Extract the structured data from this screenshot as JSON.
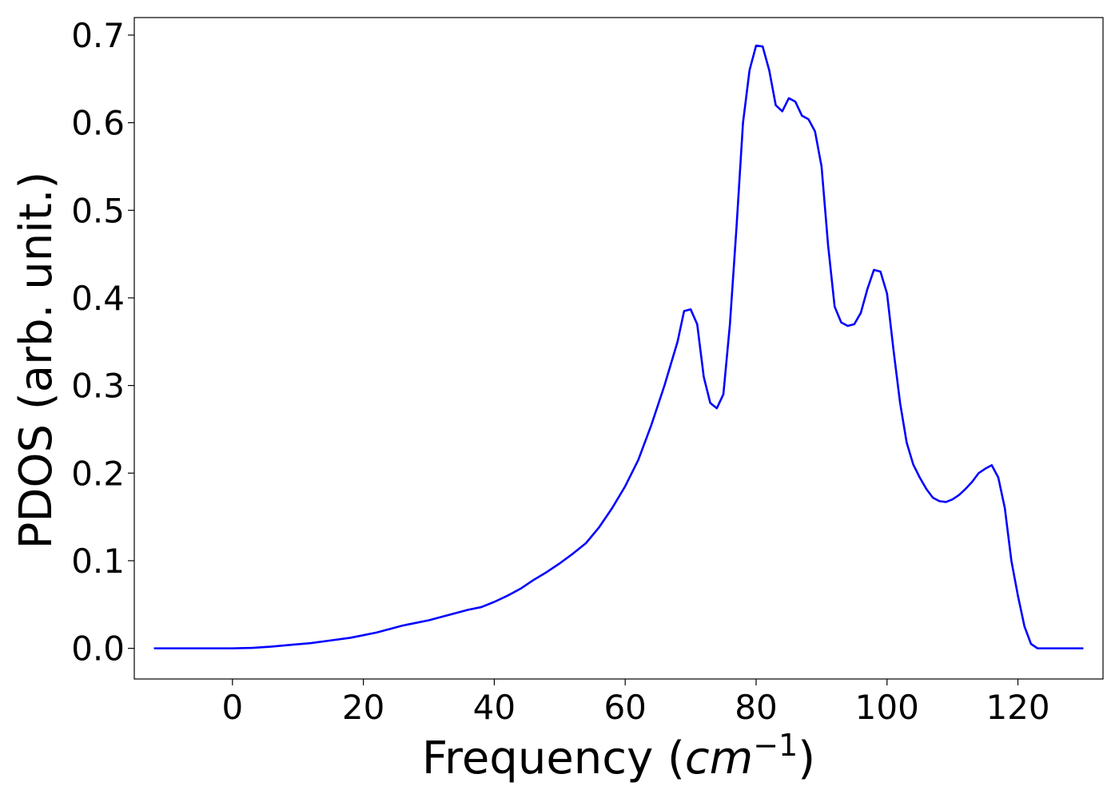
{
  "chart_data": {
    "type": "line",
    "xlabel": "Frequency (",
    "xlabel_unit": "cm",
    "xlabel_exponent": "−1",
    "xlabel_close": ")",
    "ylabel": "PDOS (arb. unit.)",
    "xlim": [
      -15,
      133
    ],
    "ylim": [
      -0.035,
      0.72
    ],
    "x_ticks": [
      0,
      20,
      40,
      60,
      80,
      100,
      120
    ],
    "x_tick_labels": [
      "0",
      "20",
      "40",
      "60",
      "80",
      "100",
      "120"
    ],
    "y_ticks": [
      0.0,
      0.1,
      0.2,
      0.3,
      0.4,
      0.5,
      0.6,
      0.7
    ],
    "y_tick_labels": [
      "0.0",
      "0.1",
      "0.2",
      "0.3",
      "0.4",
      "0.5",
      "0.6",
      "0.7"
    ],
    "grid": false,
    "series_color": "#0000ff",
    "series": [
      {
        "x": [
          -12,
          -8,
          -4,
          0,
          3,
          6,
          9,
          12,
          15,
          18,
          20,
          22,
          24,
          26,
          28,
          30,
          32,
          34,
          36,
          38,
          40,
          42,
          44,
          46,
          48,
          50,
          52,
          54,
          56,
          58,
          60,
          62,
          64,
          66,
          68,
          69,
          70,
          71,
          72,
          73,
          74,
          75,
          76,
          77,
          78,
          79,
          80,
          81,
          82,
          83,
          84,
          85,
          86,
          87,
          88,
          89,
          90,
          91,
          92,
          93,
          94,
          95,
          96,
          97,
          98,
          99,
          100,
          101,
          102,
          103,
          104,
          105,
          106,
          107,
          108,
          109,
          110,
          111,
          112,
          113,
          114,
          115,
          116,
          117,
          118,
          119,
          120,
          121,
          122,
          123,
          126,
          130
        ],
        "y": [
          0.0,
          0.0,
          0.0,
          0.0,
          0.0005,
          0.002,
          0.004,
          0.006,
          0.009,
          0.012,
          0.015,
          0.018,
          0.022,
          0.026,
          0.029,
          0.032,
          0.036,
          0.04,
          0.044,
          0.047,
          0.053,
          0.06,
          0.068,
          0.078,
          0.087,
          0.097,
          0.108,
          0.12,
          0.138,
          0.16,
          0.185,
          0.215,
          0.255,
          0.3,
          0.35,
          0.385,
          0.387,
          0.37,
          0.31,
          0.28,
          0.274,
          0.29,
          0.37,
          0.48,
          0.6,
          0.66,
          0.688,
          0.687,
          0.66,
          0.62,
          0.613,
          0.628,
          0.624,
          0.608,
          0.604,
          0.59,
          0.55,
          0.46,
          0.39,
          0.372,
          0.368,
          0.37,
          0.383,
          0.41,
          0.432,
          0.43,
          0.405,
          0.34,
          0.28,
          0.235,
          0.21,
          0.195,
          0.182,
          0.172,
          0.168,
          0.167,
          0.17,
          0.175,
          0.182,
          0.19,
          0.2,
          0.205,
          0.209,
          0.195,
          0.16,
          0.1,
          0.06,
          0.025,
          0.005,
          0.0,
          0.0,
          0.0
        ]
      }
    ]
  }
}
